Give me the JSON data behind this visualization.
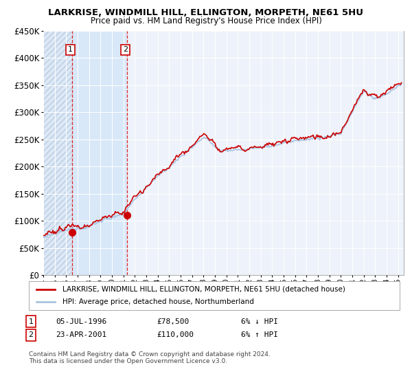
{
  "title": "LARKRISE, WINDMILL HILL, ELLINGTON, MORPETH, NE61 5HU",
  "subtitle": "Price paid vs. HM Land Registry's House Price Index (HPI)",
  "ylim": [
    0,
    450000
  ],
  "xlim_start": 1994.0,
  "xlim_end": 2025.5,
  "sale1_x": 1996.51,
  "sale1_y": 78500,
  "sale1_label": "1",
  "sale2_x": 2001.31,
  "sale2_y": 110000,
  "sale2_label": "2",
  "hpi_color": "#a8c4e0",
  "price_color": "#cc0000",
  "legend_price_label": "LARKRISE, WINDMILL HILL, ELLINGTON, MORPETH, NE61 5HU (detached house)",
  "legend_hpi_label": "HPI: Average price, detached house, Northumberland",
  "note1_date": "05-JUL-1996",
  "note1_price": "£78,500",
  "note1_hpi": "6% ↓ HPI",
  "note2_date": "23-APR-2001",
  "note2_price": "£110,000",
  "note2_hpi": "6% ↑ HPI",
  "footer": "Contains HM Land Registry data © Crown copyright and database right 2024.\nThis data is licensed under the Open Government Licence v3.0.",
  "bg_color": "#ffffff",
  "plot_bg_color": "#eef2fa",
  "grid_color": "#ffffff"
}
